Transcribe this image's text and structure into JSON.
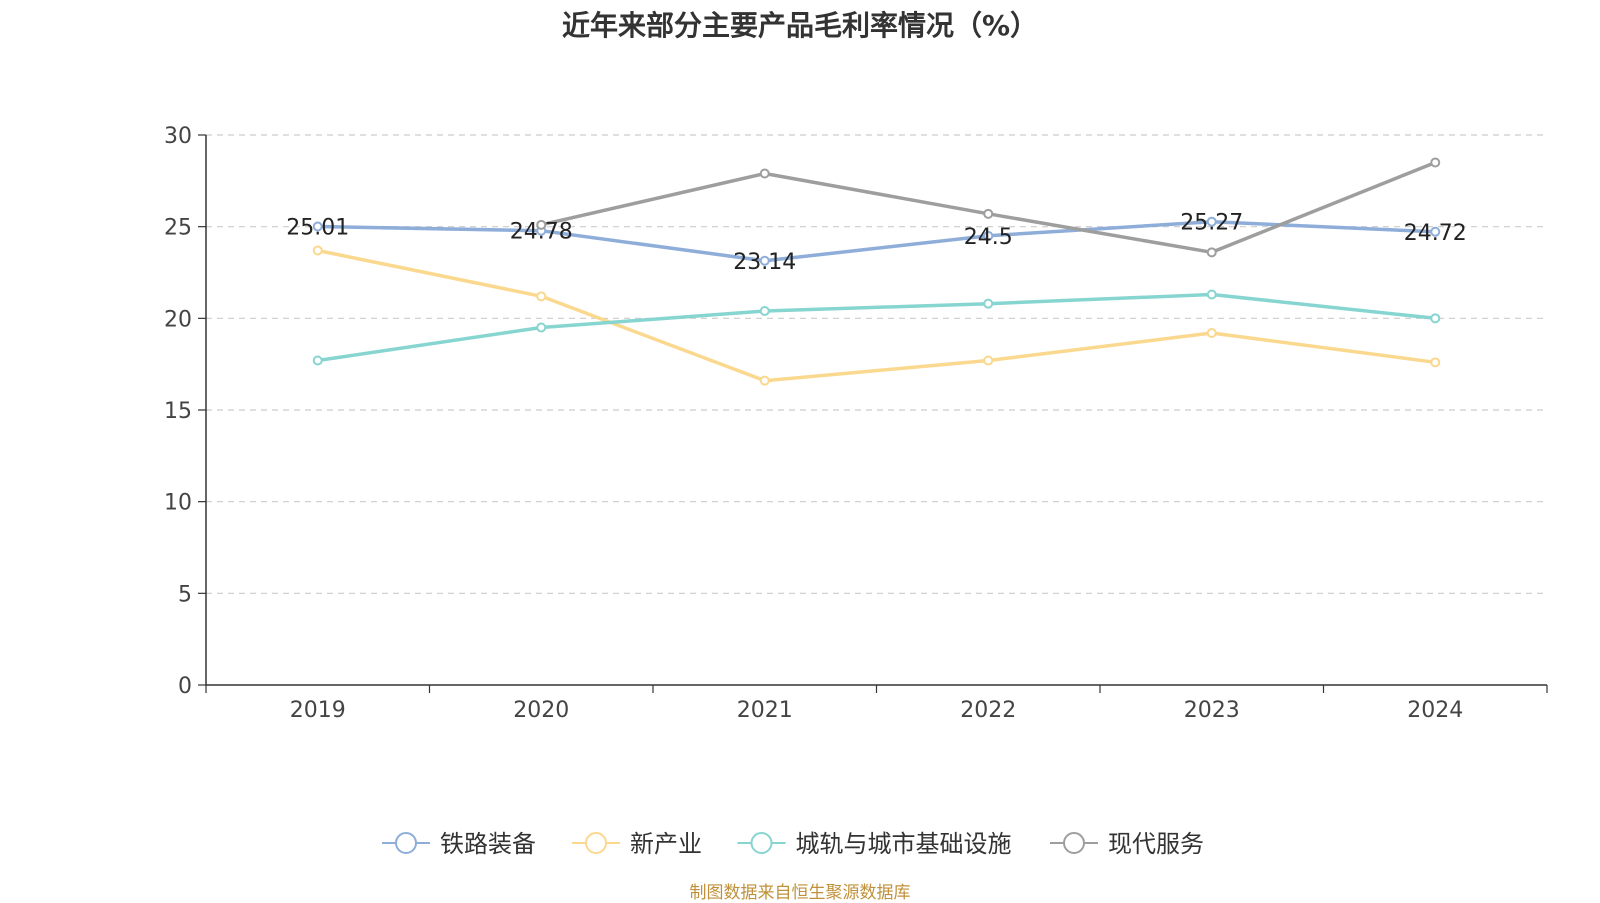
{
  "chart_data": {
    "type": "line",
    "title": "近年来部分主要产品毛利率情况（%）",
    "xlabel": "",
    "ylabel": "",
    "categories": [
      "2019",
      "2020",
      "2021",
      "2022",
      "2023",
      "2024"
    ],
    "ylim": [
      0,
      30
    ],
    "yticks": [
      0,
      5,
      10,
      15,
      20,
      25,
      30
    ],
    "grid": true,
    "legend_position": "bottom",
    "series": [
      {
        "name": "铁路装备",
        "color": "#8eaed9",
        "values": [
          25.01,
          24.78,
          23.14,
          24.5,
          25.27,
          24.72
        ],
        "show_labels": true
      },
      {
        "name": "新产业",
        "color": "#fad88e",
        "values": [
          23.7,
          21.2,
          16.6,
          17.7,
          19.2,
          17.6
        ],
        "show_labels": false
      },
      {
        "name": "城轨与城市基础设施",
        "color": "#87d5d0",
        "values": [
          17.7,
          19.5,
          20.4,
          20.8,
          21.3,
          20.0
        ],
        "show_labels": false
      },
      {
        "name": "现代服务",
        "color": "#9e9e9e",
        "values": [
          null,
          25.1,
          27.9,
          25.7,
          23.6,
          28.5
        ],
        "show_labels": false
      }
    ],
    "data_labels": [
      "25.01",
      "24.78",
      "23.14",
      "24.5",
      "25.27",
      "24.72"
    ]
  },
  "source_note": "制图数据来自恒生聚源数据库"
}
